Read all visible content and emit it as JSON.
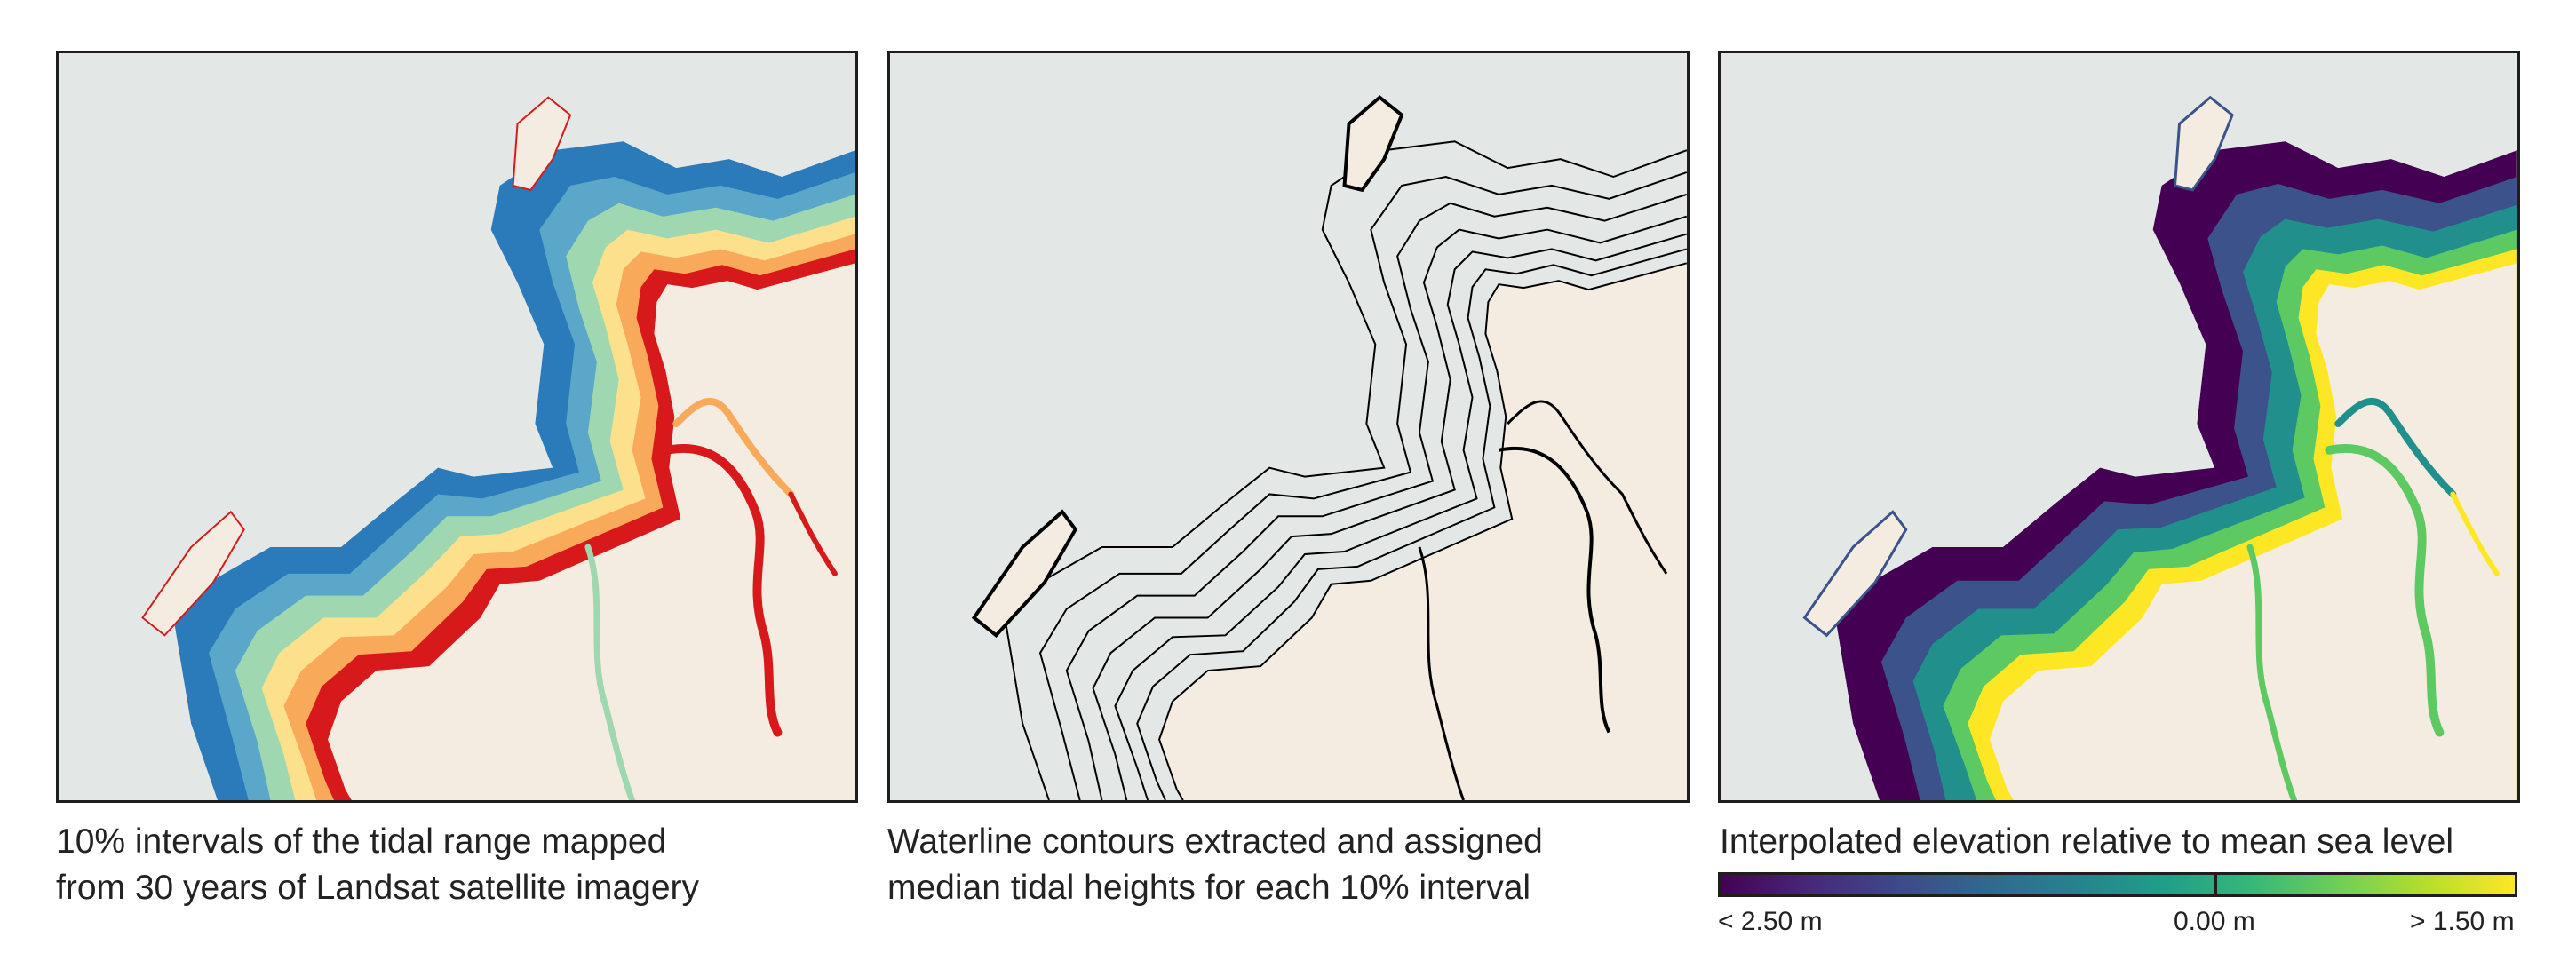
{
  "panels": [
    {
      "id": "tidal-intervals",
      "caption": [
        "10% intervals of the tidal range mapped",
        "from 30 years of Landsat satellite imagery"
      ],
      "palette": [
        "#2b7bba",
        "#5aa7c9",
        "#9fd8b0",
        "#d8ef9f",
        "#fde08b",
        "#f9a95a",
        "#ef6c3a",
        "#d7191c"
      ]
    },
    {
      "id": "waterline-contours",
      "caption": [
        "Waterline contours extracted and assigned",
        "median tidal heights for each 10% interval"
      ],
      "palette": [
        "#000000"
      ]
    },
    {
      "id": "interpolated-elevation",
      "caption": [
        "Interpolated elevation relative to mean sea level"
      ],
      "palette": [
        "#440154",
        "#3b528b",
        "#21908d",
        "#5dc962",
        "#fde725"
      ]
    }
  ],
  "colorbar": {
    "labels": {
      "min": "< 2.50 m",
      "mid": "0.00 m",
      "max": "> 1.50 m"
    },
    "colors": [
      "#440154",
      "#482878",
      "#3e4989",
      "#31688e",
      "#26828e",
      "#1f9e89",
      "#35b779",
      "#6ece58",
      "#b5de2b",
      "#fde725"
    ]
  },
  "colors": {
    "water": "#e3e8e6",
    "land": "#f4ece1",
    "frame": "#1e1e1e"
  }
}
